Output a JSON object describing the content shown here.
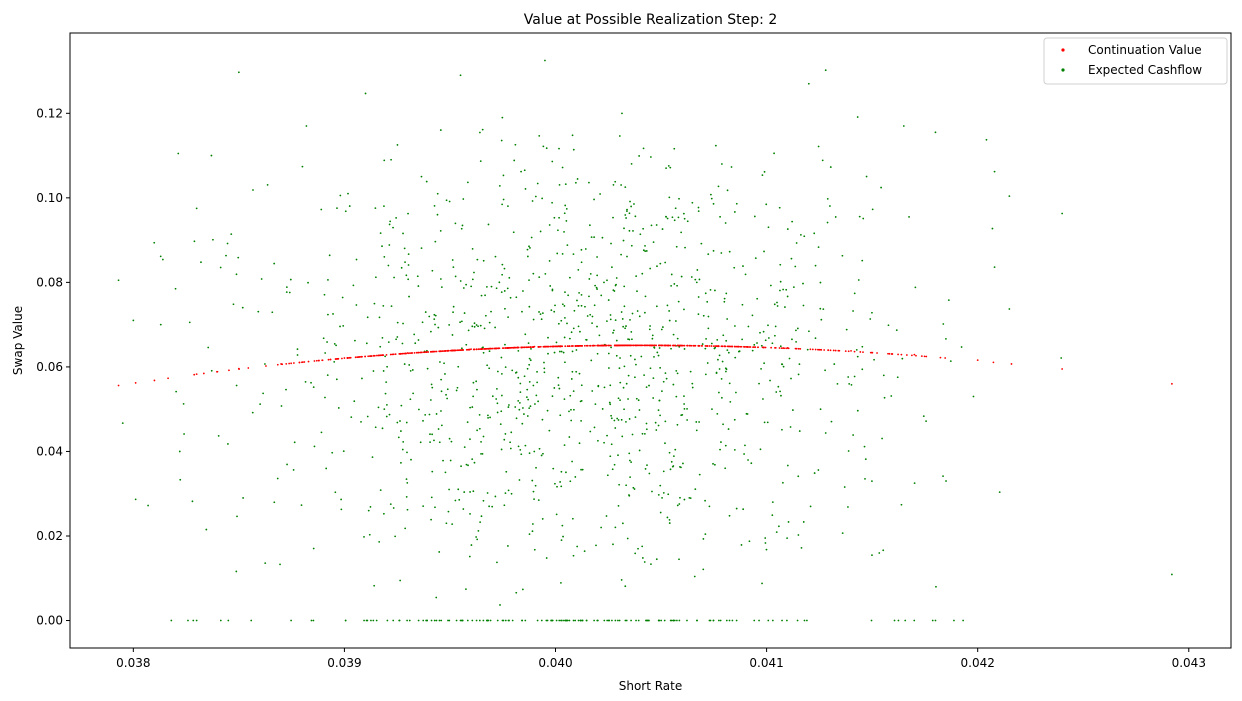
{
  "chart_data": {
    "type": "scatter",
    "title": "Value at Possible Realization Step: 2",
    "xlabel": "Short Rate",
    "ylabel": "Swap Value",
    "xlim": [
      0.0377,
      0.0432
    ],
    "ylim": [
      -0.0065,
      0.139
    ],
    "xticks": [
      0.038,
      0.039,
      0.04,
      0.041,
      0.042,
      0.043
    ],
    "xtick_labels": [
      "0.038",
      "0.039",
      "0.040",
      "0.041",
      "0.042",
      "0.043"
    ],
    "yticks": [
      0.0,
      0.02,
      0.04,
      0.06,
      0.08,
      0.1,
      0.12
    ],
    "ytick_labels": [
      "0.00",
      "0.02",
      "0.04",
      "0.06",
      "0.08",
      "0.10",
      "0.12"
    ],
    "grid": false,
    "legend_position": "top-right",
    "series": [
      {
        "name": "Continuation Value",
        "color": "#ff0000",
        "curve": {
          "x_min": 0.03793,
          "x_max": 0.04292,
          "peak_x": 0.0404,
          "peak_y": 0.0651,
          "left_end_y": 0.0556,
          "right_end_y": 0.056,
          "approx_point_count": 600
        },
        "points": [
          {
            "x": 0.03793,
            "y": 0.0556
          },
          {
            "x": 0.0381,
            "y": 0.0568
          },
          {
            "x": 0.0383,
            "y": 0.0583
          },
          {
            "x": 0.0385,
            "y": 0.0596
          },
          {
            "x": 0.0387,
            "y": 0.0607
          },
          {
            "x": 0.039,
            "y": 0.0621
          },
          {
            "x": 0.0393,
            "y": 0.0633
          },
          {
            "x": 0.0396,
            "y": 0.0642
          },
          {
            "x": 0.0399,
            "y": 0.0648
          },
          {
            "x": 0.0402,
            "y": 0.0651
          },
          {
            "x": 0.0405,
            "y": 0.0651
          },
          {
            "x": 0.0408,
            "y": 0.0649
          },
          {
            "x": 0.0411,
            "y": 0.0645
          },
          {
            "x": 0.0414,
            "y": 0.0638
          },
          {
            "x": 0.0417,
            "y": 0.0629
          },
          {
            "x": 0.042,
            "y": 0.0616
          },
          {
            "x": 0.04216,
            "y": 0.0607
          },
          {
            "x": 0.0424,
            "y": 0.0595
          },
          {
            "x": 0.04292,
            "y": 0.056
          }
        ]
      },
      {
        "name": "Expected Cashflow",
        "color": "#008000",
        "distribution": {
          "approx_point_count": 1400,
          "x_center": 0.0401,
          "x_spread": 0.00075,
          "y_min": 0.0,
          "y_max": 0.133,
          "zero_value_cluster": true
        },
        "points": [
          {
            "x": 0.03793,
            "y": 0.0805
          },
          {
            "x": 0.03795,
            "y": 0.0467
          },
          {
            "x": 0.038,
            "y": 0.071
          },
          {
            "x": 0.03807,
            "y": 0.0272
          },
          {
            "x": 0.03813,
            "y": 0.07
          },
          {
            "x": 0.0382,
            "y": 0.0785
          },
          {
            "x": 0.0383,
            "y": 0.0975
          },
          {
            "x": 0.03837,
            "y": 0.11
          },
          {
            "x": 0.0385,
            "y": 0.1297
          },
          {
            "x": 0.03882,
            "y": 0.117
          },
          {
            "x": 0.0391,
            "y": 0.1247
          },
          {
            "x": 0.03955,
            "y": 0.129
          },
          {
            "x": 0.03995,
            "y": 0.1325
          },
          {
            "x": 0.0412,
            "y": 0.127
          },
          {
            "x": 0.04128,
            "y": 0.1302
          },
          {
            "x": 0.04165,
            "y": 0.117
          },
          {
            "x": 0.0418,
            "y": 0.1155
          },
          {
            "x": 0.04208,
            "y": 0.1062
          },
          {
            "x": 0.04215,
            "y": 0.1004
          },
          {
            "x": 0.0424,
            "y": 0.0963
          },
          {
            "x": 0.04292,
            "y": 0.0109
          },
          {
            "x": 0.04208,
            "y": 0.0836
          },
          {
            "x": 0.04215,
            "y": 0.0737
          },
          {
            "x": 0.04198,
            "y": 0.053
          },
          {
            "x": 0.04185,
            "y": 0.033
          },
          {
            "x": 0.0418,
            "y": 0.0
          },
          {
            "x": 0.03818,
            "y": 0.0
          },
          {
            "x": 0.0383,
            "y": 0.0
          },
          {
            "x": 0.03845,
            "y": 0.0
          },
          {
            "x": 0.03828,
            "y": 0.0282
          },
          {
            "x": 0.03822,
            "y": 0.04
          },
          {
            "x": 0.03852,
            "y": 0.029
          }
        ]
      }
    ]
  }
}
